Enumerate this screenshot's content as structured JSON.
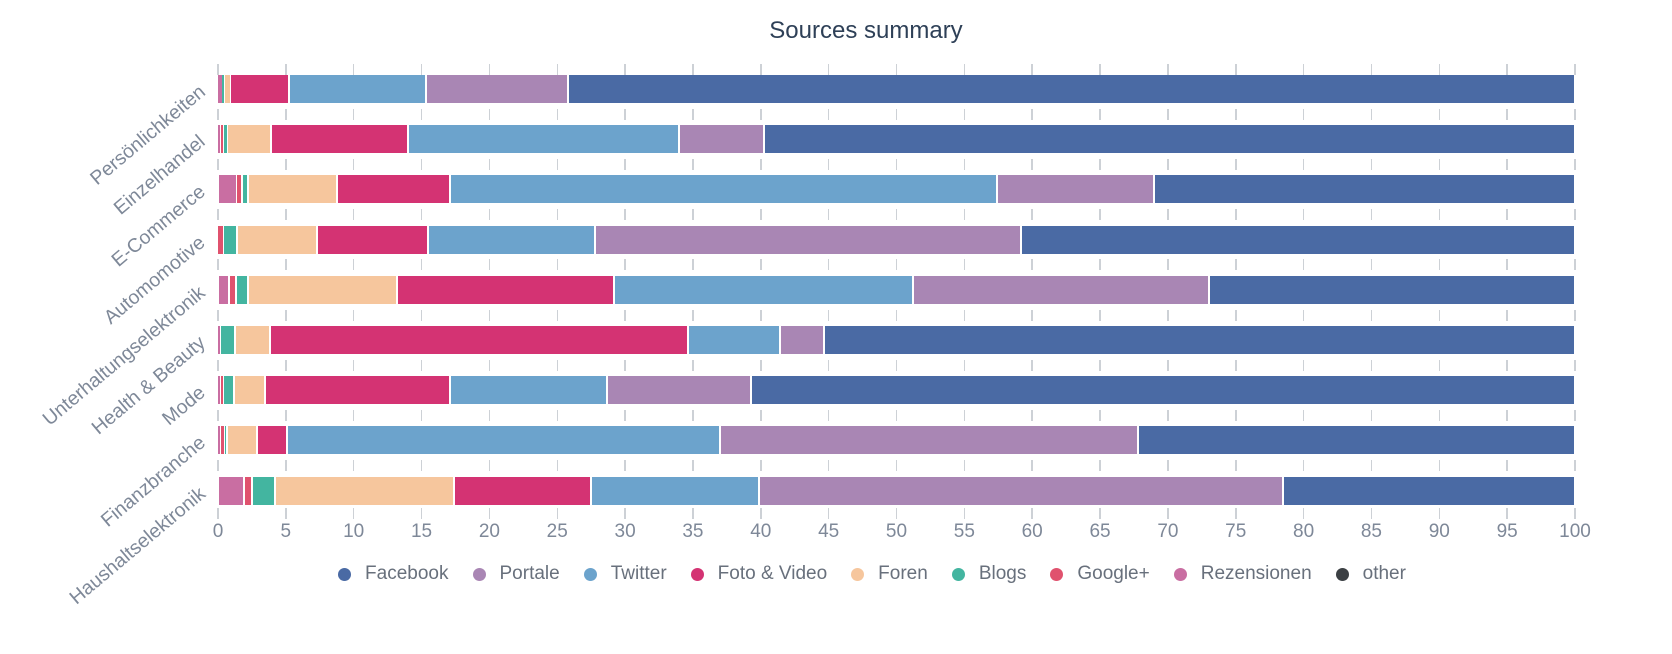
{
  "title": "Sources summary",
  "chart_data": {
    "type": "bar",
    "orientation": "horizontal",
    "stacked": true,
    "title": "Sources summary",
    "xlabel": "",
    "ylabel": "",
    "xlim": [
      0,
      100
    ],
    "xtick_step": 5,
    "grid": "vertical ticks every 5, shown between bars",
    "legend_position": "bottom",
    "categories": [
      "Persönlichkeiten",
      "Einzelhandel",
      "E-Commerce",
      "Automomotive",
      "Unterhaltungselektronik",
      "Health & Beauty",
      "Mode",
      "Finanzbranche",
      "Haushaltselektronik"
    ],
    "series": [
      {
        "name": "Rezensionen",
        "color": "#c96ea2",
        "values": [
          0.3,
          0.2,
          1.4,
          0,
          0.8,
          0.15,
          0.2,
          0.2,
          1.9
        ]
      },
      {
        "name": "Google+",
        "color": "#e0526e",
        "values": [
          0,
          0.2,
          0.35,
          0.4,
          0.5,
          0,
          0.2,
          0.25,
          0.6
        ]
      },
      {
        "name": "Blogs",
        "color": "#43b5a0",
        "values": [
          0.2,
          0.3,
          0.45,
          1.0,
          0.9,
          1.1,
          0.8,
          0.2,
          1.7
        ]
      },
      {
        "name": "Foren",
        "color": "#f6c69d",
        "values": [
          0.4,
          3.2,
          6.6,
          5.9,
          11.0,
          2.6,
          2.3,
          2.25,
          13.2
        ]
      },
      {
        "name": "Foto & Video",
        "color": "#d43373",
        "values": [
          4.3,
          10.1,
          8.3,
          8.2,
          16.0,
          30.8,
          13.6,
          2.2,
          10.1
        ]
      },
      {
        "name": "Twitter",
        "color": "#6ca3cc",
        "values": [
          10.1,
          20.0,
          40.3,
          12.3,
          22.0,
          6.8,
          11.6,
          31.9,
          12.4
        ]
      },
      {
        "name": "Portale",
        "color": "#a986b4",
        "values": [
          10.5,
          6.2,
          11.6,
          31.4,
          21.8,
          3.2,
          10.6,
          30.8,
          38.6
        ]
      },
      {
        "name": "Facebook",
        "color": "#4a6aa4",
        "values": [
          74.2,
          59.8,
          31.0,
          40.8,
          27.0,
          55.35,
          60.7,
          32.2,
          21.5
        ]
      },
      {
        "name": "other",
        "color": "#3c4044",
        "values": [
          0,
          0,
          0,
          0,
          0,
          0,
          0,
          0,
          0
        ]
      }
    ],
    "legend_order": [
      "Facebook",
      "Portale",
      "Twitter",
      "Foto & Video",
      "Foren",
      "Blogs",
      "Google+",
      "Rezensionen",
      "other"
    ]
  }
}
